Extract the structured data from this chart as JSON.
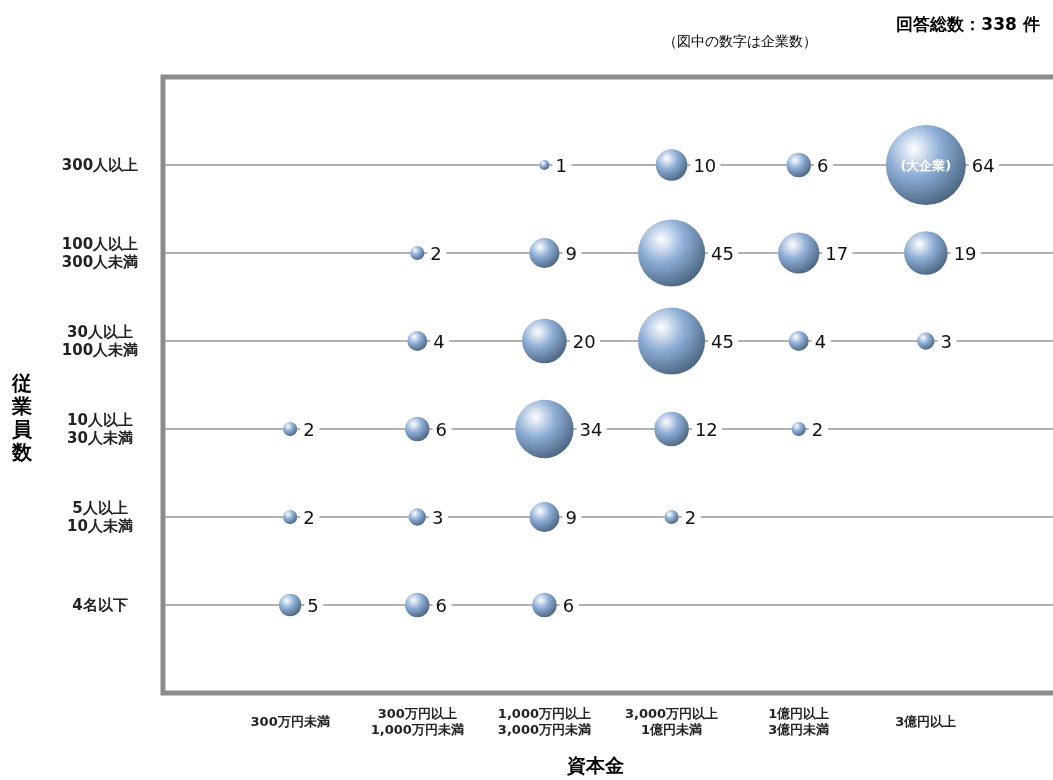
{
  "chart_data": {
    "type": "heatmap",
    "title": "回答総数：338 件",
    "subtitle": "（図中の数字は企業数）",
    "xlabel": "資本金",
    "ylabel": "従業員数",
    "categories": [
      "300万円未満",
      "300万円以上\n1,000万円未満",
      "1,000万円以上\n3,000万円未満",
      "3,000万円以上\n1億円未満",
      "1億円以上\n3億円未満",
      "3億円以上"
    ],
    "y_categories": [
      "300人以上",
      "100人以上\n300人未満",
      "30人以上\n100人未満",
      "10人以上\n30人未満",
      "5人以上\n10人未満",
      "4名以下"
    ],
    "cells": [
      [
        null,
        null,
        1,
        10,
        6,
        64
      ],
      [
        null,
        2,
        9,
        45,
        17,
        19
      ],
      [
        null,
        4,
        20,
        45,
        4,
        3
      ],
      [
        2,
        6,
        34,
        12,
        2,
        null
      ],
      [
        2,
        3,
        9,
        2,
        null,
        null
      ],
      [
        5,
        6,
        6,
        null,
        null,
        null
      ]
    ],
    "data_labels": true,
    "grid": "y",
    "color": "#8eaed6",
    "annotations": [
      "(大企業)"
    ]
  }
}
